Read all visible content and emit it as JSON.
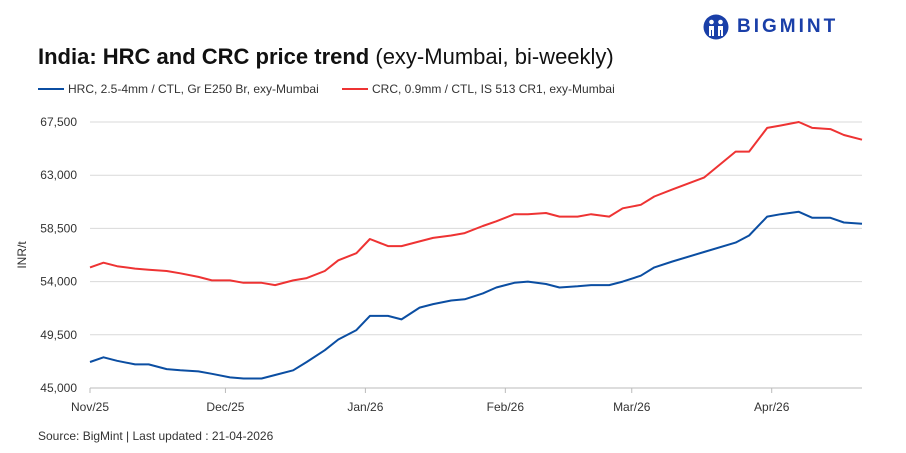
{
  "title": {
    "bold": "India: HRC and CRC price trend",
    "normal": "(exy-Mumbai, bi-weekly)"
  },
  "logo": {
    "text": "BIGMINT",
    "color": "#1a3fa8"
  },
  "source": "Source: BigMint | Last updated : 21-04-2026",
  "chart_data": {
    "type": "line",
    "title": "India: HRC and CRC price trend (exy-Mumbai, bi-weekly)",
    "ylabel": "INR/t",
    "xlabel": "",
    "ylim": [
      45000,
      67500
    ],
    "yticks": [
      45000,
      49500,
      54000,
      58500,
      63000,
      67500
    ],
    "ytick_labels": [
      "45,000",
      "49,500",
      "54,000",
      "58,500",
      "63,000",
      "67,500"
    ],
    "xlim": [
      "2025-11-01",
      "2026-04-21"
    ],
    "xticks": [
      "2025-11-01",
      "2025-12-01",
      "2026-01-01",
      "2026-02-01",
      "2026-03-01",
      "2026-04-01"
    ],
    "xtick_labels": [
      "Nov/25",
      "Dec/25",
      "Jan/26",
      "Feb/26",
      "Mar/26",
      "Apr/26"
    ],
    "grid": "horizontal",
    "legend": "top",
    "x": [
      "2025-11-01",
      "2025-11-04",
      "2025-11-07",
      "2025-11-11",
      "2025-11-14",
      "2025-11-18",
      "2025-11-21",
      "2025-11-25",
      "2025-11-28",
      "2025-12-02",
      "2025-12-05",
      "2025-12-09",
      "2025-12-12",
      "2025-12-16",
      "2025-12-19",
      "2025-12-23",
      "2025-12-26",
      "2025-12-30",
      "2026-01-02",
      "2026-01-06",
      "2026-01-09",
      "2026-01-13",
      "2026-01-16",
      "2026-01-20",
      "2026-01-23",
      "2026-01-27",
      "2026-01-30",
      "2026-02-03",
      "2026-02-06",
      "2026-02-10",
      "2026-02-13",
      "2026-02-17",
      "2026-02-20",
      "2026-02-24",
      "2026-02-27",
      "2026-03-03",
      "2026-03-06",
      "2026-03-10",
      "2026-03-17",
      "2026-03-24",
      "2026-03-27",
      "2026-03-31",
      "2026-04-03",
      "2026-04-07",
      "2026-04-10",
      "2026-04-14",
      "2026-04-17",
      "2026-04-21"
    ],
    "series": [
      {
        "name": "HRC, 2.5-4mm / CTL, Gr E250 Br, exy-Mumbai",
        "color": "#0b4ea2",
        "values": [
          47200,
          47600,
          47300,
          47000,
          47000,
          46600,
          46500,
          46400,
          46200,
          45900,
          45800,
          45800,
          46100,
          46500,
          47200,
          48200,
          49100,
          49900,
          51100,
          51100,
          50800,
          51800,
          52100,
          52400,
          52500,
          53000,
          53500,
          53900,
          54000,
          53800,
          53500,
          53600,
          53700,
          53700,
          54000,
          54500,
          55200,
          55700,
          56500,
          57300,
          57900,
          59500,
          59700,
          59900,
          59400,
          59400,
          59000,
          58900
        ]
      },
      {
        "name": "CRC, 0.9mm / CTL, IS 513 CR1, exy-Mumbai",
        "color": "#ee3333",
        "values": [
          55200,
          55600,
          55300,
          55100,
          55000,
          54900,
          54700,
          54400,
          54100,
          54100,
          53900,
          53900,
          53700,
          54100,
          54300,
          54900,
          55800,
          56400,
          57600,
          57000,
          57000,
          57400,
          57700,
          57900,
          58100,
          58700,
          59100,
          59700,
          59700,
          59800,
          59500,
          59500,
          59700,
          59500,
          60200,
          60500,
          61200,
          61800,
          62800,
          65000,
          65000,
          67000,
          67200,
          67500,
          67000,
          66900,
          66400,
          66000
        ]
      }
    ]
  }
}
